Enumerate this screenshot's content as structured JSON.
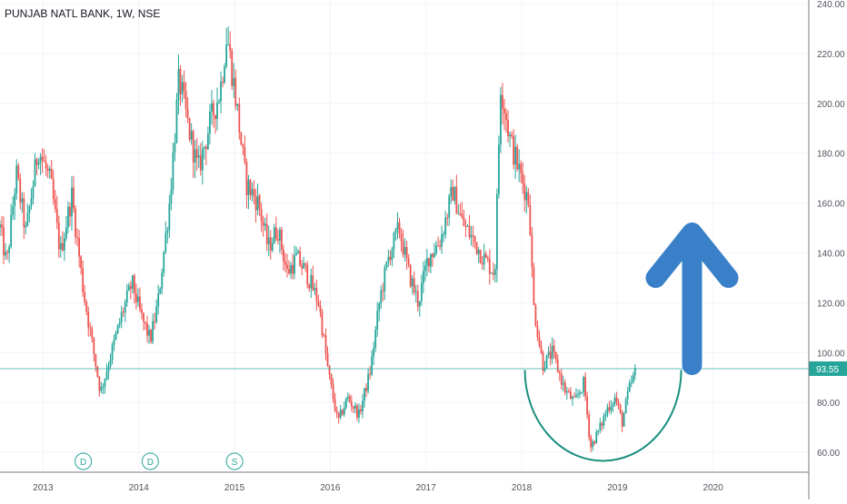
{
  "title": "PUNJAB NATL BANK, 1W, NSE",
  "chart_data": {
    "type": "candlestick",
    "symbol": "PUNJAB NATL BANK",
    "interval": "1W",
    "exchange": "NSE",
    "x_ticks": [
      "2013",
      "2014",
      "2015",
      "2016",
      "2017",
      "2018",
      "2019",
      "2020"
    ],
    "y_ticks": [
      "240.00",
      "220.00",
      "200.00",
      "180.00",
      "160.00",
      "140.00",
      "120.00",
      "100.00",
      "80.00",
      "60.00"
    ],
    "ylim": [
      52,
      240
    ],
    "xlim": [
      2012.55,
      2021.0
    ],
    "last_price": "93.55",
    "last_price_value": 93.55,
    "up_color": "#26a69a",
    "down_color": "#ef5350",
    "price_line_color": "#26a69a",
    "price_path": [
      [
        2012.55,
        150
      ],
      [
        2012.62,
        135
      ],
      [
        2012.72,
        172
      ],
      [
        2012.82,
        148
      ],
      [
        2012.95,
        182
      ],
      [
        2013.08,
        168
      ],
      [
        2013.18,
        140
      ],
      [
        2013.3,
        163
      ],
      [
        2013.42,
        125
      ],
      [
        2013.52,
        102
      ],
      [
        2013.6,
        84
      ],
      [
        2013.7,
        98
      ],
      [
        2013.82,
        115
      ],
      [
        2013.93,
        128
      ],
      [
        2014.02,
        115
      ],
      [
        2014.12,
        105
      ],
      [
        2014.2,
        120
      ],
      [
        2014.32,
        160
      ],
      [
        2014.42,
        210
      ],
      [
        2014.52,
        190
      ],
      [
        2014.62,
        173
      ],
      [
        2014.75,
        193
      ],
      [
        2014.85,
        205
      ],
      [
        2014.92,
        228
      ],
      [
        2015.02,
        200
      ],
      [
        2015.12,
        168
      ],
      [
        2015.25,
        160
      ],
      [
        2015.35,
        142
      ],
      [
        2015.45,
        150
      ],
      [
        2015.55,
        132
      ],
      [
        2015.65,
        138
      ],
      [
        2015.75,
        132
      ],
      [
        2015.88,
        120
      ],
      [
        2015.98,
        92
      ],
      [
        2016.08,
        72
      ],
      [
        2016.18,
        82
      ],
      [
        2016.3,
        75
      ],
      [
        2016.42,
        93
      ],
      [
        2016.52,
        122
      ],
      [
        2016.62,
        140
      ],
      [
        2016.72,
        150
      ],
      [
        2016.82,
        132
      ],
      [
        2016.92,
        120
      ],
      [
        2017.02,
        138
      ],
      [
        2017.15,
        145
      ],
      [
        2017.28,
        165
      ],
      [
        2017.38,
        152
      ],
      [
        2017.5,
        145
      ],
      [
        2017.6,
        138
      ],
      [
        2017.72,
        132
      ],
      [
        2017.78,
        208
      ],
      [
        2017.88,
        185
      ],
      [
        2017.98,
        172
      ],
      [
        2018.08,
        160
      ],
      [
        2018.12,
        120
      ],
      [
        2018.22,
        95
      ],
      [
        2018.32,
        100
      ],
      [
        2018.45,
        85
      ],
      [
        2018.55,
        80
      ],
      [
        2018.65,
        88
      ],
      [
        2018.72,
        62
      ],
      [
        2018.82,
        70
      ],
      [
        2018.9,
        78
      ],
      [
        2018.98,
        82
      ],
      [
        2019.05,
        72
      ],
      [
        2019.12,
        85
      ],
      [
        2019.2,
        93.55
      ]
    ],
    "markers": [
      {
        "label": "D",
        "x": 2013.42
      },
      {
        "label": "D",
        "x": 2014.12
      },
      {
        "label": "S",
        "x": 2015.0
      }
    ],
    "annotations": {
      "arc_color": "#1a8f7e",
      "arc_center": [
        2018.85,
        93
      ],
      "arrow_color": "#3a80c8",
      "arrow_x": 2019.78,
      "arrow_bottom": 95,
      "arrow_top": 150
    }
  }
}
